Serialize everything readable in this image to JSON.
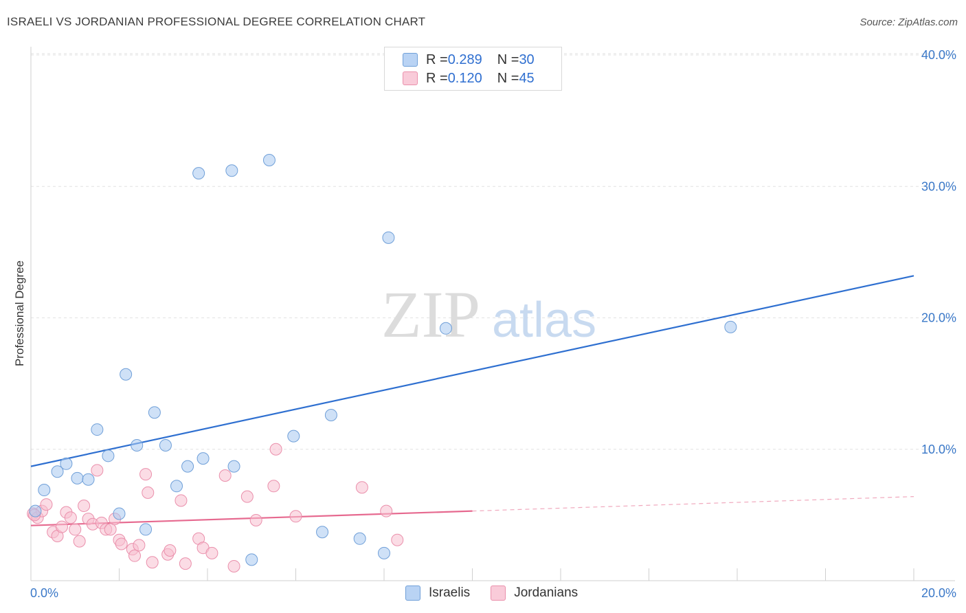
{
  "header": {
    "title": "ISRAELI VS JORDANIAN PROFESSIONAL DEGREE CORRELATION CHART",
    "source": "Source: ZipAtlas.com"
  },
  "watermark": {
    "zip": "ZIP",
    "atlas": "atlas"
  },
  "legend": {
    "rows": [
      {
        "r_label": "R = ",
        "r_value": "0.289",
        "n_label": "N = ",
        "n_value": "30"
      },
      {
        "r_label": "R = ",
        "r_value": "0.120",
        "n_label": "N = ",
        "n_value": "45"
      }
    ]
  },
  "chart_data": {
    "type": "scatter",
    "title": "ISRAELI VS JORDANIAN PROFESSIONAL DEGREE CORRELATION CHART",
    "xlabel": "",
    "ylabel": "Professional Degree",
    "xlim": [
      0,
      20
    ],
    "ylim": [
      0,
      40
    ],
    "x_tick_labels": [
      "0.0%",
      "20.0%"
    ],
    "y_tick_labels": [
      "10.0%",
      "20.0%",
      "30.0%",
      "40.0%"
    ],
    "y_ticks": [
      10,
      20,
      30,
      40
    ],
    "grid": true,
    "legend_position": "top-center",
    "series": [
      {
        "name": "Israelis",
        "color": "#a8c8f0",
        "edge": "#6f9fd8",
        "r": "0.289",
        "n": 30,
        "trend": {
          "x": [
            0,
            20
          ],
          "y": [
            8.7,
            23.2
          ],
          "color": "#2e6fd0"
        },
        "points": [
          [
            0.1,
            5.3
          ],
          [
            0.3,
            6.9
          ],
          [
            0.6,
            8.3
          ],
          [
            0.8,
            8.9
          ],
          [
            1.05,
            7.8
          ],
          [
            1.3,
            7.7
          ],
          [
            1.5,
            11.5
          ],
          [
            1.75,
            9.5
          ],
          [
            2.0,
            5.1
          ],
          [
            2.15,
            15.7
          ],
          [
            2.4,
            10.3
          ],
          [
            2.6,
            3.9
          ],
          [
            2.8,
            12.8
          ],
          [
            3.05,
            10.3
          ],
          [
            3.3,
            7.2
          ],
          [
            3.55,
            8.7
          ],
          [
            3.8,
            31.0
          ],
          [
            3.9,
            9.3
          ],
          [
            4.55,
            31.2
          ],
          [
            4.6,
            8.7
          ],
          [
            5.0,
            1.6
          ],
          [
            5.4,
            32.0
          ],
          [
            5.95,
            11.0
          ],
          [
            6.6,
            3.7
          ],
          [
            6.8,
            12.6
          ],
          [
            7.45,
            3.2
          ],
          [
            8.0,
            2.1
          ],
          [
            8.1,
            26.1
          ],
          [
            9.4,
            19.2
          ],
          [
            15.85,
            19.3
          ]
        ]
      },
      {
        "name": "Jordanians",
        "color": "#f7bfd0",
        "edge": "#ea8fab",
        "r": "0.120",
        "n": 45,
        "trend": {
          "x": [
            0,
            10
          ],
          "y": [
            4.2,
            5.3
          ],
          "color": "#e6698f",
          "dashed_extension": {
            "x": [
              10,
              20
            ],
            "y": [
              5.3,
              6.4
            ]
          }
        },
        "points": [
          [
            0.05,
            5.1
          ],
          [
            0.15,
            4.8
          ],
          [
            0.25,
            5.3
          ],
          [
            0.35,
            5.8
          ],
          [
            0.5,
            3.7
          ],
          [
            0.6,
            3.4
          ],
          [
            0.7,
            4.1
          ],
          [
            0.8,
            5.2
          ],
          [
            0.9,
            4.8
          ],
          [
            1.0,
            3.9
          ],
          [
            1.1,
            3.0
          ],
          [
            1.2,
            5.7
          ],
          [
            1.3,
            4.7
          ],
          [
            1.4,
            4.3
          ],
          [
            1.5,
            8.4
          ],
          [
            1.6,
            4.4
          ],
          [
            1.7,
            3.9
          ],
          [
            1.8,
            3.9
          ],
          [
            1.9,
            4.7
          ],
          [
            2.0,
            3.1
          ],
          [
            2.05,
            2.8
          ],
          [
            2.3,
            2.4
          ],
          [
            2.35,
            1.9
          ],
          [
            2.45,
            2.7
          ],
          [
            2.6,
            8.1
          ],
          [
            2.65,
            6.7
          ],
          [
            2.75,
            1.4
          ],
          [
            3.1,
            2.0
          ],
          [
            3.15,
            2.3
          ],
          [
            3.4,
            6.1
          ],
          [
            3.5,
            1.3
          ],
          [
            3.8,
            3.2
          ],
          [
            3.9,
            2.5
          ],
          [
            4.1,
            2.1
          ],
          [
            4.4,
            8.0
          ],
          [
            4.6,
            1.1
          ],
          [
            4.9,
            6.4
          ],
          [
            5.1,
            4.6
          ],
          [
            5.5,
            7.2
          ],
          [
            5.55,
            10.0
          ],
          [
            6.0,
            4.9
          ],
          [
            7.5,
            7.1
          ],
          [
            8.05,
            5.3
          ],
          [
            8.3,
            3.1
          ],
          [
            0.08,
            5.0
          ]
        ]
      }
    ]
  }
}
